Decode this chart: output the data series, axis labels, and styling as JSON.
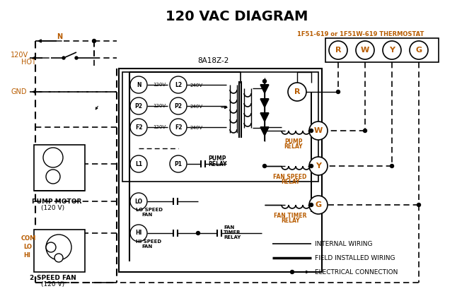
{
  "title": "120 VAC DIAGRAM",
  "title_fontsize": 14,
  "title_fontweight": "bold",
  "background_color": "#ffffff",
  "line_color": "#000000",
  "orange_color": "#b85c00",
  "thermostat_label": "1F51-619 or 1F51W-619 THERMOSTAT",
  "box_label": "8A18Z-2",
  "fig_w": 6.7,
  "fig_h": 4.19,
  "dpi": 100
}
